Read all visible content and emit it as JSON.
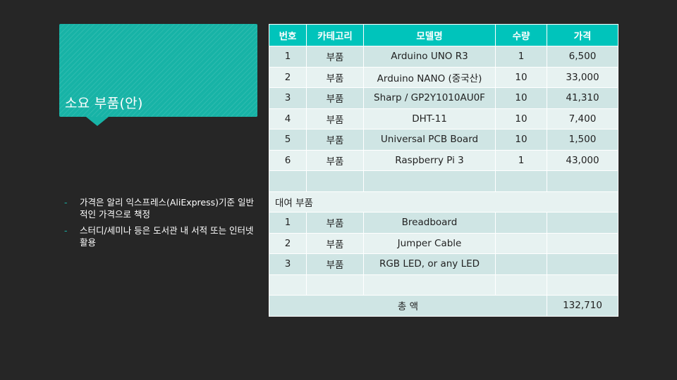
{
  "title": "소요 부품(안)",
  "bullets": [
    "가격은 알리 익스프레스(AliExpress)기준 일반적인 가격으로 책정",
    "스터디/세미나 등은 도서관 내 서적 또는 인터넷 활용"
  ],
  "bullet_marker": "-",
  "table": {
    "headers": [
      "번호",
      "카테고리",
      "모델명",
      "수량",
      "가격"
    ],
    "rows": [
      [
        "1",
        "부품",
        "Arduino UNO R3",
        "1",
        "6,500"
      ],
      [
        "2",
        "부품",
        "Arduino NANO (중국산)",
        "10",
        "33,000"
      ],
      [
        "3",
        "부품",
        "Sharp / GP2Y1010AU0F",
        "10",
        "41,310"
      ],
      [
        "4",
        "부품",
        "DHT-11",
        "10",
        "7,400"
      ],
      [
        "5",
        "부품",
        "Universal PCB Board",
        "10",
        "1,500"
      ],
      [
        "6",
        "부품",
        "Raspberry Pi 3",
        "1",
        "43,000"
      ]
    ],
    "rental_section_label": "대여 부품",
    "rental_rows": [
      [
        "1",
        "부품",
        "Breadboard",
        "",
        ""
      ],
      [
        "2",
        "부품",
        "Jumper Cable",
        "",
        ""
      ],
      [
        "3",
        "부품",
        "RGB LED, or any LED",
        "",
        ""
      ]
    ],
    "total_label": "총 액",
    "total_value": "132,710"
  },
  "colors": {
    "background": "#262626",
    "accent": "#17b3a6",
    "table_header": "#00c4bb",
    "row_dark": "#cfe5e4",
    "row_light": "#e7f2f1"
  }
}
